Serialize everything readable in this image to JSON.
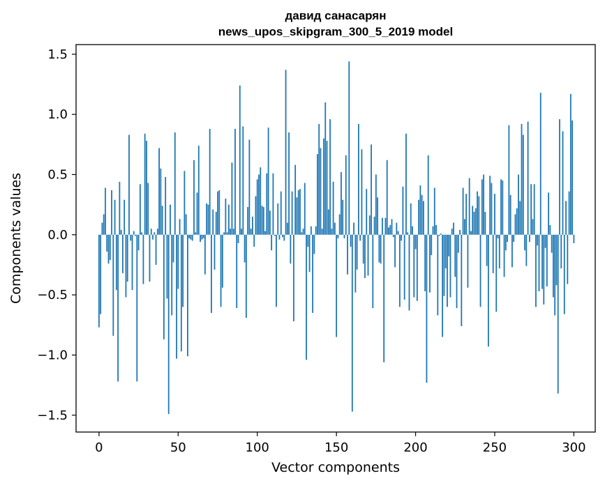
{
  "chart_data": {
    "type": "bar",
    "title": "давид санасарян",
    "subtitle": "news_upos_skipgram_300_5_2019 model",
    "xlabel": "Vector components",
    "ylabel": "Components values",
    "xlim": [
      -14.5,
      313.5
    ],
    "ylim": [
      -1.64,
      1.58
    ],
    "x_ticks": [
      0,
      50,
      100,
      150,
      200,
      250,
      300
    ],
    "x_tick_labels": [
      "0",
      "50",
      "100",
      "150",
      "200",
      "250",
      "300"
    ],
    "y_ticks": [
      1.5,
      1.0,
      0.5,
      0.0,
      -0.5,
      -1.0,
      -1.5
    ],
    "y_tick_labels": [
      "1.5",
      "1.0",
      "0.5",
      "0.0",
      "−0.5",
      "−1.0",
      "−1.5"
    ],
    "bar_color": "#1f77b4",
    "series": [
      {
        "name": "components",
        "values": [
          -0.77,
          -0.66,
          0.1,
          0.17,
          0.39,
          -0.14,
          -0.24,
          -0.21,
          0.37,
          -0.84,
          0.29,
          -0.46,
          -1.22,
          0.44,
          0.04,
          -0.32,
          0.29,
          -0.52,
          -0.39,
          0.83,
          -0.05,
          -0.46,
          0.03,
          -0.01,
          -1.22,
          -0.13,
          0.42,
          0.02,
          -0.41,
          0.84,
          0.78,
          0.43,
          -0.39,
          0.05,
          -0.04,
          0.02,
          -0.25,
          0.05,
          0.72,
          0.55,
          0.24,
          -0.87,
          0.48,
          -0.53,
          -1.49,
          0.25,
          -0.67,
          -0.23,
          0.85,
          -1.03,
          -0.45,
          0.13,
          -0.97,
          -0.6,
          0.53,
          0.17,
          -1.01,
          -0.03,
          -0.04,
          -0.05,
          0.62,
          0.02,
          0.35,
          0.74,
          -0.06,
          -0.04,
          -0.03,
          -0.33,
          0.26,
          0.25,
          0.88,
          -0.65,
          0.21,
          -0.29,
          0.19,
          0.36,
          0.37,
          -0.6,
          -0.44,
          0.02,
          0.3,
          0.02,
          0.25,
          0.05,
          0.6,
          0.05,
          0.88,
          -0.61,
          -0.07,
          1.24,
          0.05,
          0.9,
          -0.23,
          -0.69,
          0.23,
          0.79,
          0.05,
          0.15,
          -0.1,
          0.32,
          0.46,
          0.5,
          0.56,
          0.24,
          0.23,
          0.03,
          0.51,
          0.89,
          0.2,
          -0.13,
          0.51,
          -0.01,
          -0.6,
          0.26,
          -0.04,
          0.36,
          -0.02,
          -0.05,
          1.37,
          0.1,
          0.85,
          -0.24,
          0.36,
          -0.72,
          0.58,
          0.31,
          0.37,
          0.38,
          0.02,
          0.05,
          0.43,
          -1.04,
          -0.1,
          -0.31,
          0.07,
          -0.65,
          -0.16,
          0.07,
          0.67,
          0.92,
          0.72,
          0.05,
          0.8,
          1.1,
          0.78,
          0.21,
          0.96,
          0.05,
          0.44,
          0.1,
          -0.85,
          -0.03,
          0.17,
          0.52,
          0.29,
          -0.03,
          0.66,
          -0.33,
          1.44,
          -0.1,
          -1.47,
          0.1,
          -0.48,
          -0.29,
          0.92,
          -0.05,
          0.71,
          -0.24,
          -0.36,
          0.38,
          -0.34,
          0.16,
          0.75,
          -0.61,
          0.15,
          0.5,
          0.31,
          -0.23,
          -0.24,
          0.14,
          -1.06,
          0.14,
          0.62,
          0.06,
          0.08,
          0.13,
          -0.02,
          -0.27,
          0.1,
          0.03,
          -0.6,
          -0.05,
          0.4,
          -0.54,
          0.84,
          0.02,
          -0.63,
          0.26,
          0.07,
          -0.52,
          -0.12,
          -0.55,
          0.29,
          0.41,
          0.33,
          0.28,
          -0.47,
          -1.23,
          0.66,
          -0.48,
          -0.17,
          0.07,
          0.39,
          0.08,
          -0.67,
          -0.01,
          0.01,
          -0.85,
          -0.51,
          -0.28,
          -0.6,
          -0.18,
          -0.52,
          0.05,
          0.1,
          -0.35,
          -0.61,
          -0.15,
          0.04,
          -0.76,
          0.39,
          0.13,
          0.34,
          -0.44,
          0.47,
          0.03,
          0.24,
          0.19,
          0.22,
          0.36,
          0.32,
          -0.6,
          0.46,
          0.5,
          0.19,
          -0.26,
          -0.93,
          0.49,
          0.43,
          -0.32,
          0.34,
          -0.64,
          -0.03,
          -0.28,
          0.46,
          0.45,
          -0.35,
          -0.13,
          -0.06,
          0.91,
          0.33,
          -0.27,
          -0.06,
          0.17,
          0.22,
          0.5,
          0.28,
          0.92,
          0.83,
          -0.13,
          -0.26,
          0.94,
          -0.06,
          0.42,
          0.13,
          0.42,
          -0.6,
          -0.09,
          -0.47,
          1.18,
          -0.45,
          -0.58,
          -0.11,
          -0.43,
          0.35,
          0.08,
          -0.15,
          -0.52,
          -0.67,
          -0.42,
          -1.32,
          0.96,
          -0.28,
          0.86,
          -0.66,
          0.28,
          -0.41,
          0.36,
          1.17,
          0.95,
          -0.07
        ]
      }
    ]
  }
}
